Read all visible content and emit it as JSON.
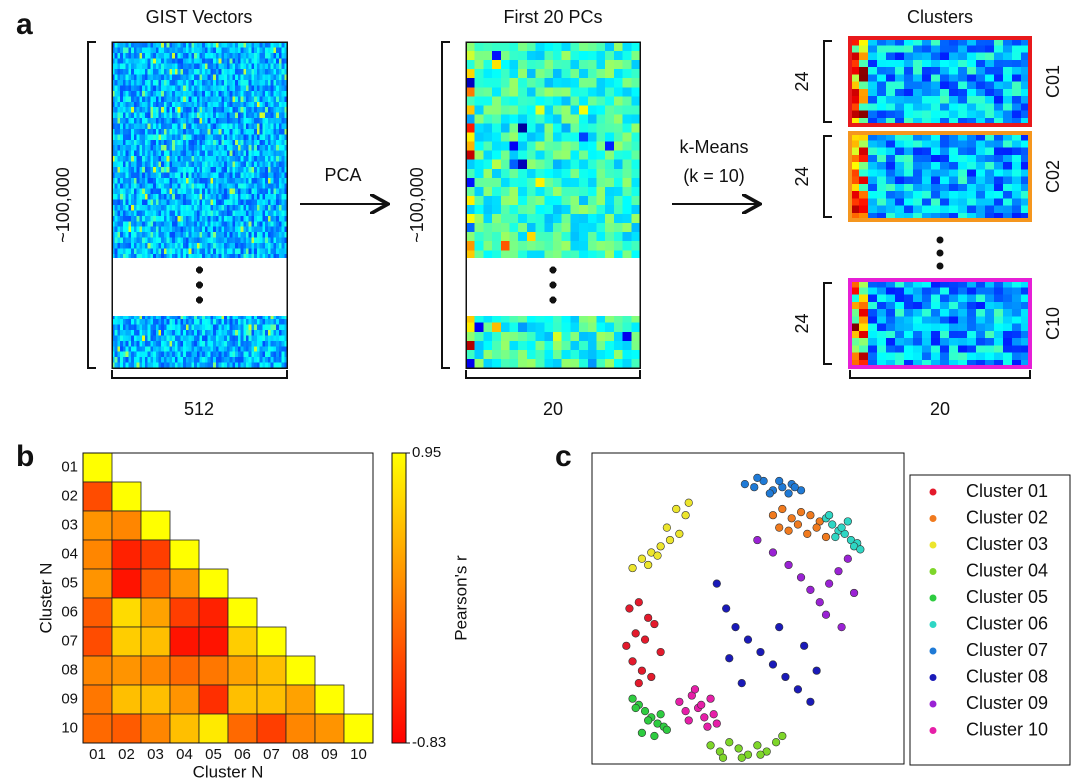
{
  "panel_a": {
    "label": "a",
    "gist": {
      "title": "GIST Vectors",
      "rows": "~100,000",
      "cols": "512"
    },
    "pca": {
      "arrow": "PCA"
    },
    "pcs": {
      "title": "First 20 PCs",
      "rows": "~100,000",
      "cols": "20"
    },
    "kmeans": {
      "line1": "k-Means",
      "line2": "(k = 10)"
    },
    "clusters": {
      "title": "Clusters",
      "cols": "20",
      "items": [
        {
          "name": "C01",
          "rows": "24",
          "color": "#e8191c"
        },
        {
          "name": "C02",
          "rows": "24",
          "color": "#f5961e"
        },
        {
          "name": "C10",
          "rows": "24",
          "color": "#e61fd6"
        }
      ]
    }
  },
  "chart_data": [
    {
      "type": "heatmap",
      "panel_label": "b",
      "xlabel": "Cluster N",
      "ylabel": "Cluster N",
      "categories": [
        "01",
        "02",
        "03",
        "04",
        "05",
        "06",
        "07",
        "08",
        "09",
        "10"
      ],
      "values": [
        [
          0.95,
          null,
          null,
          null,
          null,
          null,
          null,
          null,
          null,
          null
        ],
        [
          -0.3,
          0.95,
          null,
          null,
          null,
          null,
          null,
          null,
          null,
          null
        ],
        [
          0.2,
          0.1,
          0.95,
          null,
          null,
          null,
          null,
          null,
          null,
          null
        ],
        [
          0.1,
          -0.6,
          -0.4,
          0.95,
          null,
          null,
          null,
          null,
          null,
          null
        ],
        [
          0.2,
          -0.7,
          -0.2,
          0.2,
          0.95,
          null,
          null,
          null,
          null,
          null
        ],
        [
          -0.2,
          0.7,
          0.3,
          -0.4,
          -0.6,
          0.95,
          null,
          null,
          null,
          null
        ],
        [
          -0.3,
          0.6,
          0.5,
          -0.7,
          -0.7,
          0.6,
          0.95,
          null,
          null,
          null
        ],
        [
          0.1,
          0.2,
          0.1,
          -0.1,
          0.0,
          0.3,
          0.5,
          0.95,
          null,
          null
        ],
        [
          0.0,
          0.5,
          0.5,
          0.2,
          -0.5,
          0.5,
          0.5,
          0.3,
          0.95,
          null
        ],
        [
          -0.1,
          -0.2,
          0.1,
          0.5,
          0.8,
          -0.1,
          -0.4,
          0.1,
          0.2,
          0.95
        ]
      ],
      "colorbar_label": "Pearson's r",
      "clim": [
        -0.83,
        0.95
      ],
      "cticks": [
        -0.83,
        0.95
      ],
      "colors": [
        "#ff0000",
        "#ff8000",
        "#ffff00"
      ]
    },
    {
      "type": "scatter",
      "panel_label": "c",
      "xlim": [
        0,
        100
      ],
      "ylim": [
        0,
        100
      ],
      "legend": "right",
      "series": [
        {
          "name": "Cluster 01",
          "color": "#e31a2c",
          "x": [
            12,
            15,
            18,
            20,
            14,
            17,
            11,
            22,
            13,
            16,
            19,
            15
          ],
          "y": [
            50,
            52,
            47,
            45,
            42,
            40,
            38,
            36,
            33,
            30,
            28,
            26
          ]
        },
        {
          "name": "Cluster 02",
          "color": "#f07a1e",
          "x": [
            58,
            61,
            64,
            67,
            70,
            73,
            60,
            63,
            66,
            69,
            72,
            75
          ],
          "y": [
            80,
            82,
            79,
            81,
            80,
            78,
            76,
            75,
            77,
            74,
            76,
            73
          ]
        },
        {
          "name": "Cluster 03",
          "color": "#ece52c",
          "x": [
            13,
            16,
            19,
            22,
            25,
            28,
            30,
            18,
            21,
            24,
            27,
            31
          ],
          "y": [
            63,
            66,
            68,
            70,
            72,
            74,
            80,
            64,
            67,
            76,
            82,
            84
          ]
        },
        {
          "name": "Cluster 04",
          "color": "#7ed62a",
          "x": [
            38,
            41,
            44,
            47,
            50,
            53,
            56,
            59,
            42,
            48,
            54,
            61
          ],
          "y": [
            6,
            4,
            7,
            5,
            3,
            6,
            4,
            7,
            2,
            2,
            3,
            9
          ]
        },
        {
          "name": "Cluster 05",
          "color": "#2ecc40",
          "x": [
            13,
            15,
            17,
            19,
            21,
            23,
            14,
            18,
            22,
            16,
            20,
            24
          ],
          "y": [
            21,
            19,
            17,
            15,
            13,
            12,
            18,
            14,
            16,
            10,
            9,
            11
          ]
        },
        {
          "name": "Cluster 06",
          "color": "#2ed6c4",
          "x": [
            75,
            77,
            79,
            81,
            83,
            85,
            78,
            80,
            82,
            84,
            76,
            86
          ],
          "y": [
            79,
            77,
            75,
            74,
            72,
            71,
            73,
            76,
            78,
            70,
            80,
            69
          ]
        },
        {
          "name": "Cluster 07",
          "color": "#1f7ad6",
          "x": [
            49,
            52,
            55,
            58,
            61,
            64,
            67,
            53,
            57,
            60,
            63,
            65
          ],
          "y": [
            90,
            89,
            91,
            88,
            89,
            90,
            88,
            92,
            87,
            91,
            87,
            89
          ]
        },
        {
          "name": "Cluster 08",
          "color": "#1a1ab8",
          "x": [
            40,
            43,
            46,
            50,
            54,
            58,
            62,
            66,
            70,
            72,
            48,
            60,
            68,
            44
          ],
          "y": [
            58,
            50,
            44,
            40,
            36,
            32,
            28,
            24,
            20,
            30,
            26,
            44,
            38,
            34
          ]
        },
        {
          "name": "Cluster 09",
          "color": "#9a22d4",
          "x": [
            53,
            58,
            63,
            67,
            70,
            73,
            76,
            79,
            82,
            84,
            75,
            80
          ],
          "y": [
            72,
            68,
            64,
            60,
            56,
            52,
            58,
            62,
            66,
            55,
            48,
            44
          ]
        },
        {
          "name": "Cluster 10",
          "color": "#e61fa8",
          "x": [
            28,
            30,
            32,
            34,
            36,
            38,
            40,
            31,
            35,
            39,
            33,
            37
          ],
          "y": [
            20,
            17,
            22,
            18,
            15,
            21,
            13,
            14,
            19,
            16,
            24,
            12
          ]
        }
      ]
    }
  ]
}
